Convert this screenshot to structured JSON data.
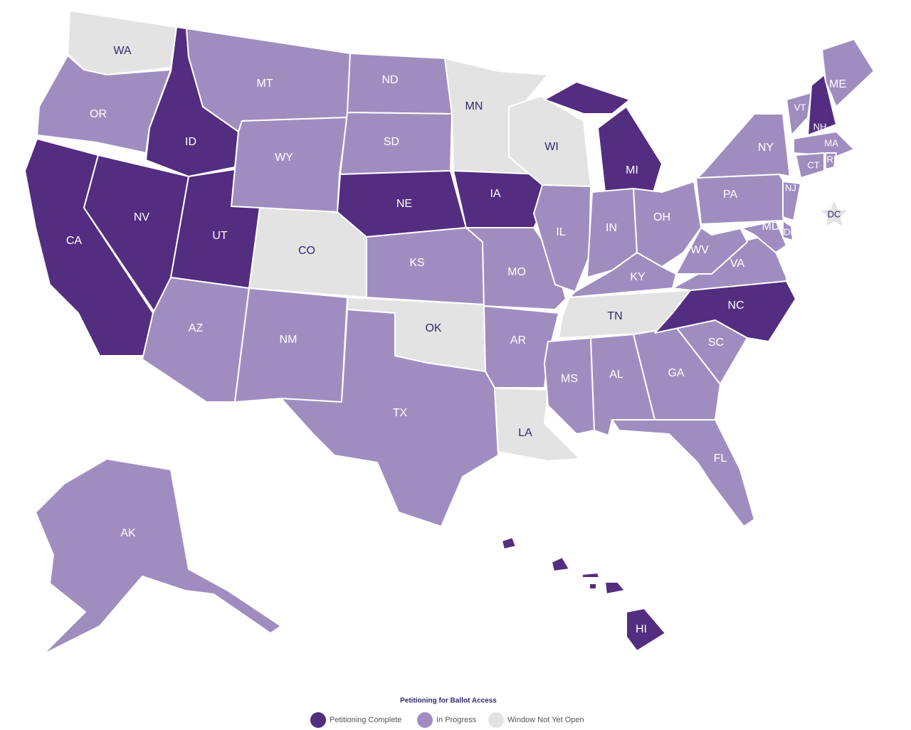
{
  "legend": {
    "title": "Petitioning for Ballot Access",
    "items": [
      {
        "label": "Petitioning Complete",
        "color": "#532d80"
      },
      {
        "label": "In Progress",
        "color": "#a08dc0"
      },
      {
        "label": "Window Not Yet Open",
        "color": "#e3e3e3"
      }
    ]
  },
  "states": [
    {
      "label": "WA",
      "color": "#e3e3e3"
    },
    {
      "label": "OR",
      "color": "#a08dc0"
    },
    {
      "label": "CA",
      "color": "#532d80"
    },
    {
      "label": "NV",
      "color": "#532d80"
    },
    {
      "label": "ID",
      "color": "#532d80"
    },
    {
      "label": "MT",
      "color": "#a08dc0"
    },
    {
      "label": "WY",
      "color": "#a08dc0"
    },
    {
      "label": "UT",
      "color": "#532d80"
    },
    {
      "label": "CO",
      "color": "#e3e3e3"
    },
    {
      "label": "AZ",
      "color": "#a08dc0"
    },
    {
      "label": "NM",
      "color": "#a08dc0"
    },
    {
      "label": "ND",
      "color": "#a08dc0"
    },
    {
      "label": "SD",
      "color": "#a08dc0"
    },
    {
      "label": "NE",
      "color": "#532d80"
    },
    {
      "label": "KS",
      "color": "#a08dc0"
    },
    {
      "label": "OK",
      "color": "#e3e3e3"
    },
    {
      "label": "TX",
      "color": "#a08dc0"
    },
    {
      "label": "MN",
      "color": "#e3e3e3"
    },
    {
      "label": "IA",
      "color": "#532d80"
    },
    {
      "label": "MO",
      "color": "#a08dc0"
    },
    {
      "label": "AR",
      "color": "#a08dc0"
    },
    {
      "label": "LA",
      "color": "#e3e3e3"
    },
    {
      "label": "WI",
      "color": "#e3e3e3"
    },
    {
      "label": "IL",
      "color": "#a08dc0"
    },
    {
      "label": "MI",
      "color": "#532d80"
    },
    {
      "label": "IN",
      "color": "#a08dc0"
    },
    {
      "label": "OH",
      "color": "#a08dc0"
    },
    {
      "label": "KY",
      "color": "#a08dc0"
    },
    {
      "label": "TN",
      "color": "#e3e3e3"
    },
    {
      "label": "MS",
      "color": "#a08dc0"
    },
    {
      "label": "AL",
      "color": "#a08dc0"
    },
    {
      "label": "GA",
      "color": "#a08dc0"
    },
    {
      "label": "SC",
      "color": "#a08dc0"
    },
    {
      "label": "NC",
      "color": "#532d80"
    },
    {
      "label": "FL",
      "color": "#a08dc0"
    },
    {
      "label": "VA",
      "color": "#a08dc0"
    },
    {
      "label": "WV",
      "color": "#a08dc0"
    },
    {
      "label": "PA",
      "color": "#a08dc0"
    },
    {
      "label": "NY",
      "color": "#a08dc0"
    },
    {
      "label": "NJ",
      "color": "#a08dc0"
    },
    {
      "label": "MD",
      "color": "#a08dc0"
    },
    {
      "label": "DE",
      "color": "#a08dc0"
    },
    {
      "label": "VT",
      "color": "#a08dc0"
    },
    {
      "label": "NH",
      "color": "#532d80"
    },
    {
      "label": "ME",
      "color": "#a08dc0"
    },
    {
      "label": "MA",
      "color": "#a08dc0"
    },
    {
      "label": "CT",
      "color": "#a08dc0"
    },
    {
      "label": "RI",
      "color": "#a08dc0"
    },
    {
      "label": "AK",
      "color": "#a08dc0"
    },
    {
      "label": "HI",
      "color": "#532d80"
    },
    {
      "label": "DC",
      "color": "#e3e3e3"
    }
  ]
}
